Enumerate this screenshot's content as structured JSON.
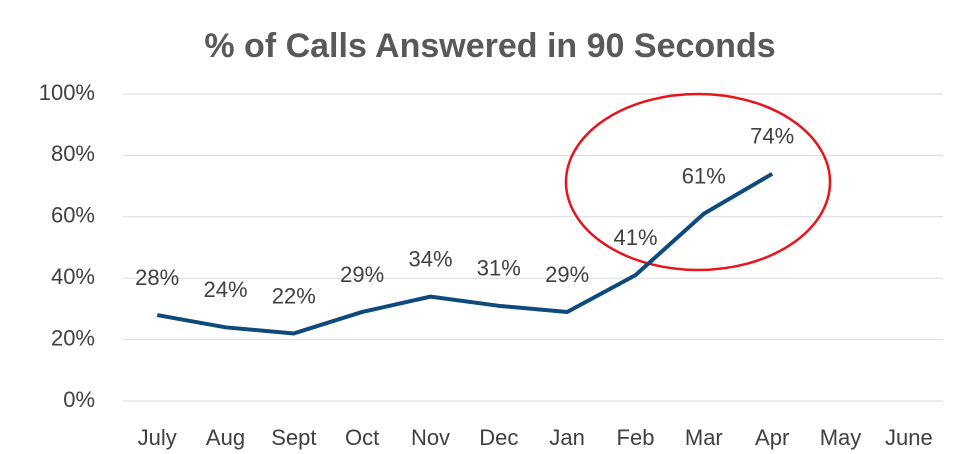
{
  "chart_data": {
    "type": "line",
    "title": "% of Calls Answered in 90 Seconds",
    "categories": [
      "July",
      "Aug",
      "Sept",
      "Oct",
      "Nov",
      "Dec",
      "Jan",
      "Feb",
      "Mar",
      "Apr",
      "May",
      "June"
    ],
    "series": [
      {
        "name": "% of Calls Answered in 90 Seconds",
        "color": "#0e4a7c",
        "values": [
          28,
          24,
          22,
          29,
          34,
          31,
          29,
          41,
          61,
          74,
          null,
          null
        ],
        "value_labels": [
          "28%",
          "24%",
          "22%",
          "29%",
          "34%",
          "31%",
          "29%",
          "41%",
          "61%",
          "74%",
          null,
          null
        ]
      }
    ],
    "ylim": [
      0,
      100
    ],
    "yticks": [
      {
        "value": 0,
        "label": "0%"
      },
      {
        "value": 20,
        "label": "20%"
      },
      {
        "value": 40,
        "label": "40%"
      },
      {
        "value": 60,
        "label": "60%"
      },
      {
        "value": 80,
        "label": "80%"
      },
      {
        "value": 100,
        "label": "100%"
      }
    ],
    "grid": true
  }
}
